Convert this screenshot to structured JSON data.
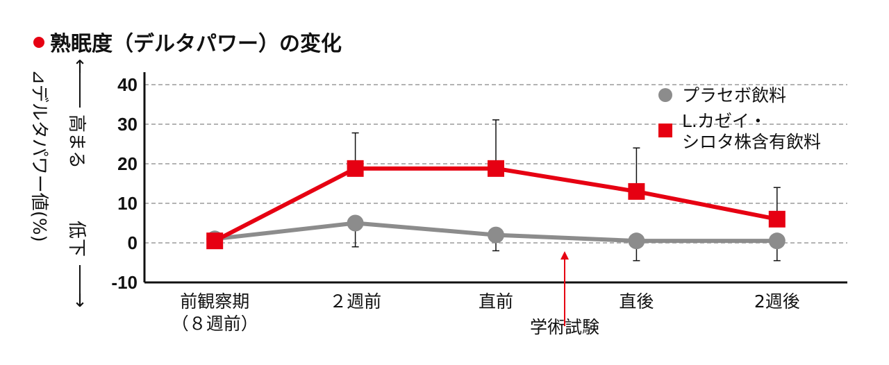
{
  "chart_data": {
    "type": "line",
    "title": "熟眠度（デルタパワー）の変化",
    "ylabel": "⊿デルタパワー値(%)",
    "y_direction": {
      "up": "高まる",
      "down": "低下"
    },
    "categories": [
      {
        "line1": "前観察期",
        "line2": "（８週前）"
      },
      {
        "line1": "２週前",
        "line2": ""
      },
      {
        "line1": "直前",
        "line2": ""
      },
      {
        "line1": "直後",
        "line2": ""
      },
      {
        "line1": "2週後",
        "line2": ""
      }
    ],
    "ylim": [
      -10,
      40
    ],
    "yticks": [
      40,
      30,
      20,
      10,
      0,
      -10
    ],
    "grid": true,
    "legend_position": "top-right",
    "series": [
      {
        "name": "プラセボ飲料",
        "marker": "circle",
        "color": "#8c8c8c",
        "values": [
          1,
          5,
          2,
          0.5,
          0.5
        ],
        "error_plus": [
          0,
          0,
          0,
          0,
          0
        ],
        "error_minus": [
          0,
          6,
          4,
          5,
          5
        ]
      },
      {
        "name_lines": [
          "L.カゼイ・",
          "シロタ株含有飲料"
        ],
        "marker": "square",
        "color": "#e60012",
        "values": [
          0.5,
          18.8,
          18.8,
          13,
          6
        ],
        "error_plus": [
          0,
          9,
          12.3,
          11,
          8
        ],
        "error_minus": [
          0,
          0,
          0,
          0,
          0
        ]
      }
    ],
    "annotation": {
      "text": "学術試験",
      "color": "#e60012"
    }
  }
}
